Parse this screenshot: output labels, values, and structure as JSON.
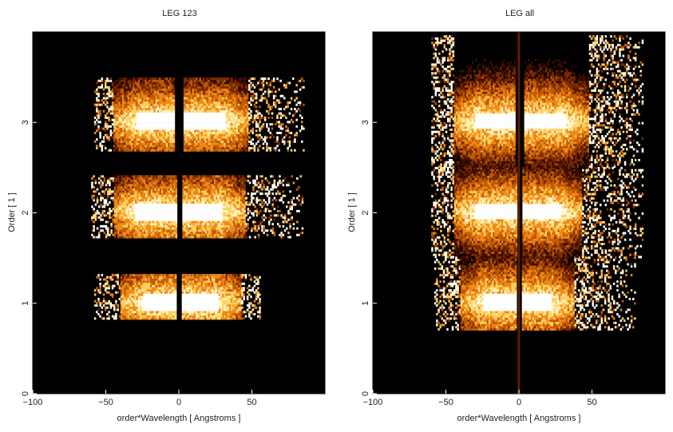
{
  "chart_data": [
    {
      "type": "heatmap",
      "title": "LEG 123",
      "xlabel": "order*Wavelength [ Angstroms ]",
      "ylabel": "Order [ 1 ]",
      "xlim": [
        -100,
        100
      ],
      "ylim": [
        0,
        4
      ],
      "xticks": [
        -100,
        -50,
        0,
        50
      ],
      "xtick_labels": [
        "−100",
        "−50",
        "0",
        "50"
      ],
      "yticks": [
        0,
        1,
        2,
        3
      ],
      "ytick_labels": [
        "0",
        "1",
        "2",
        "3"
      ],
      "colormap": [
        "#000000",
        "#3a0d00",
        "#7a2a00",
        "#c15a00",
        "#f08a1a",
        "#ffd060",
        "#fff6c8",
        "#ffffff"
      ],
      "orders": [
        {
          "order": 1,
          "y_range": [
            0.82,
            1.32
          ],
          "x_range": [
            -58,
            55
          ],
          "scatter_to": 55,
          "gap": [
            -2,
            2
          ],
          "core": [
            -25,
            27
          ]
        },
        {
          "order": 2,
          "y_range": [
            1.72,
            2.4
          ],
          "x_range": [
            -60,
            85
          ],
          "scatter_to": 85,
          "gap": [
            -2,
            2
          ],
          "core": [
            -30,
            30
          ]
        },
        {
          "order": 3,
          "y_range": [
            2.68,
            3.48
          ],
          "x_range": [
            -58,
            85
          ],
          "scatter_to": 85,
          "gap": [
            -3,
            3
          ],
          "core": [
            -30,
            32
          ]
        }
      ]
    },
    {
      "type": "heatmap",
      "title": "LEG all",
      "xlabel": "order*Wavelength [ Angstroms ]",
      "ylabel": "Order [ 1 ]",
      "xlim": [
        -100,
        100
      ],
      "ylim": [
        0,
        4
      ],
      "xticks": [
        -100,
        -50,
        0,
        50
      ],
      "xtick_labels": [
        "−100",
        "−50",
        "0",
        "50"
      ],
      "yticks": [
        0,
        1,
        2,
        3
      ],
      "ytick_labels": [
        "0",
        "1",
        "2",
        "3"
      ],
      "colormap": [
        "#000000",
        "#3a0d00",
        "#7a2a00",
        "#c15a00",
        "#f08a1a",
        "#ffd060",
        "#fff6c8",
        "#ffffff"
      ],
      "orders": [
        {
          "order": 1,
          "y_range": [
            0.7,
            1.5
          ],
          "x_range": [
            -58,
            80
          ],
          "scatter_to": 80,
          "gap": [
            -2,
            2
          ],
          "core": [
            -25,
            22
          ]
        },
        {
          "order": 2,
          "y_range": [
            1.5,
            2.5
          ],
          "x_range": [
            -60,
            85
          ],
          "scatter_to": 85,
          "gap": [
            -2,
            2
          ],
          "core": [
            -30,
            28
          ]
        },
        {
          "order": 3,
          "y_range": [
            2.5,
            3.95
          ],
          "x_range": [
            -60,
            85
          ],
          "scatter_to": 85,
          "gap": [
            -3,
            3
          ],
          "core": [
            -30,
            32
          ]
        }
      ]
    }
  ]
}
